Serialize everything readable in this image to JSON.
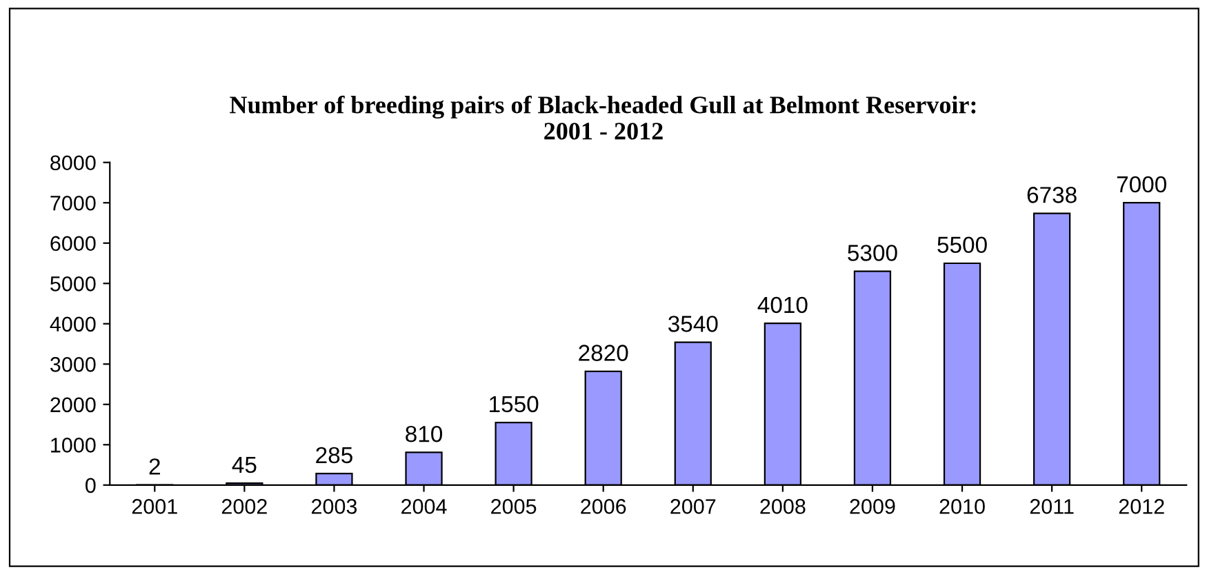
{
  "chart_data": {
    "type": "bar",
    "title": "Number of breeding pairs of Black-headed Gull at Belmont Reservoir:\n2001 - 2012",
    "categories": [
      "2001",
      "2002",
      "2003",
      "2004",
      "2005",
      "2006",
      "2007",
      "2008",
      "2009",
      "2010",
      "2011",
      "2012"
    ],
    "values": [
      2,
      45,
      285,
      810,
      1550,
      2820,
      3540,
      4010,
      5300,
      5500,
      6738,
      7000
    ],
    "color": "#9999ff",
    "ylim": [
      0,
      8000
    ],
    "yticks": [
      0,
      1000,
      2000,
      3000,
      4000,
      5000,
      6000,
      7000,
      8000
    ],
    "grid": false,
    "data_labels": true
  }
}
